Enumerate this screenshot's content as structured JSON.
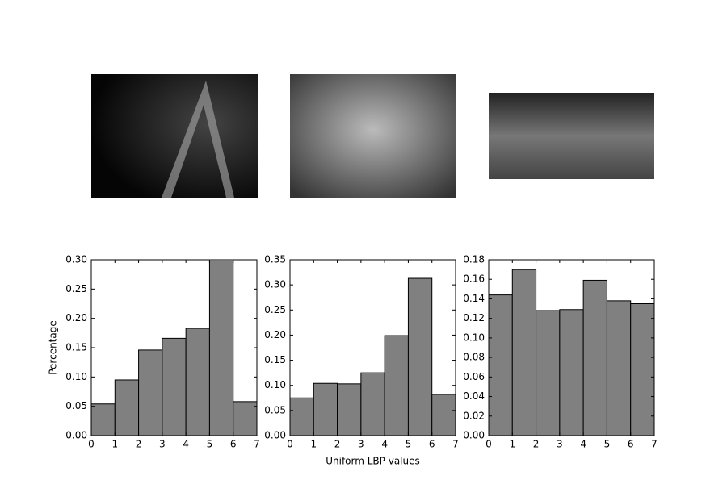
{
  "chart_data": [
    {
      "type": "histogram",
      "ylabel": "Percentage",
      "bins": [
        0,
        1,
        2,
        3,
        4,
        5,
        6,
        7
      ],
      "values": [
        0.054,
        0.095,
        0.146,
        0.166,
        0.183,
        0.298,
        0.058
      ],
      "color": "#808080",
      "xlim": [
        0,
        7
      ],
      "xticks": [
        0,
        1,
        2,
        3,
        4,
        5,
        6,
        7
      ],
      "ylim": [
        0,
        0.3
      ],
      "yticks": [
        {
          "value": 0,
          "label": "0.00"
        },
        {
          "value": 0.05,
          "label": "0.05"
        },
        {
          "value": 0.1,
          "label": "0.10"
        },
        {
          "value": 0.15,
          "label": "0.15"
        },
        {
          "value": 0.2,
          "label": "0.20"
        },
        {
          "value": 0.25,
          "label": "0.25"
        },
        {
          "value": 0.3,
          "label": "0.30"
        }
      ]
    },
    {
      "type": "histogram",
      "xlabel": "Uniform LBP values",
      "bins": [
        0,
        1,
        2,
        3,
        4,
        5,
        6,
        7
      ],
      "values": [
        0.075,
        0.104,
        0.103,
        0.125,
        0.199,
        0.313,
        0.082
      ],
      "color": "#808080",
      "xlim": [
        0,
        7
      ],
      "xticks": [
        0,
        1,
        2,
        3,
        4,
        5,
        6,
        7
      ],
      "ylim": [
        0,
        0.35
      ],
      "yticks": [
        {
          "value": 0,
          "label": "0.00"
        },
        {
          "value": 0.05,
          "label": "0.05"
        },
        {
          "value": 0.1,
          "label": "0.10"
        },
        {
          "value": 0.15,
          "label": "0.15"
        },
        {
          "value": 0.2,
          "label": "0.20"
        },
        {
          "value": 0.25,
          "label": "0.25"
        },
        {
          "value": 0.3,
          "label": "0.30"
        },
        {
          "value": 0.35,
          "label": "0.35"
        }
      ]
    },
    {
      "type": "histogram",
      "bins": [
        0,
        1,
        2,
        3,
        4,
        5,
        6,
        7
      ],
      "values": [
        0.144,
        0.17,
        0.128,
        0.129,
        0.159,
        0.138,
        0.135
      ],
      "color": "#808080",
      "xlim": [
        0,
        7
      ],
      "xticks": [
        0,
        1,
        2,
        3,
        4,
        5,
        6,
        7
      ],
      "ylim": [
        0,
        0.18
      ],
      "yticks": [
        {
          "value": 0,
          "label": "0.00"
        },
        {
          "value": 0.02,
          "label": "0.02"
        },
        {
          "value": 0.04,
          "label": "0.04"
        },
        {
          "value": 0.06,
          "label": "0.06"
        },
        {
          "value": 0.08,
          "label": "0.08"
        },
        {
          "value": 0.1,
          "label": "0.10"
        },
        {
          "value": 0.12,
          "label": "0.12"
        },
        {
          "value": 0.14,
          "label": "0.14"
        },
        {
          "value": 0.16,
          "label": "0.16"
        },
        {
          "value": 0.18,
          "label": "0.18"
        }
      ]
    }
  ]
}
